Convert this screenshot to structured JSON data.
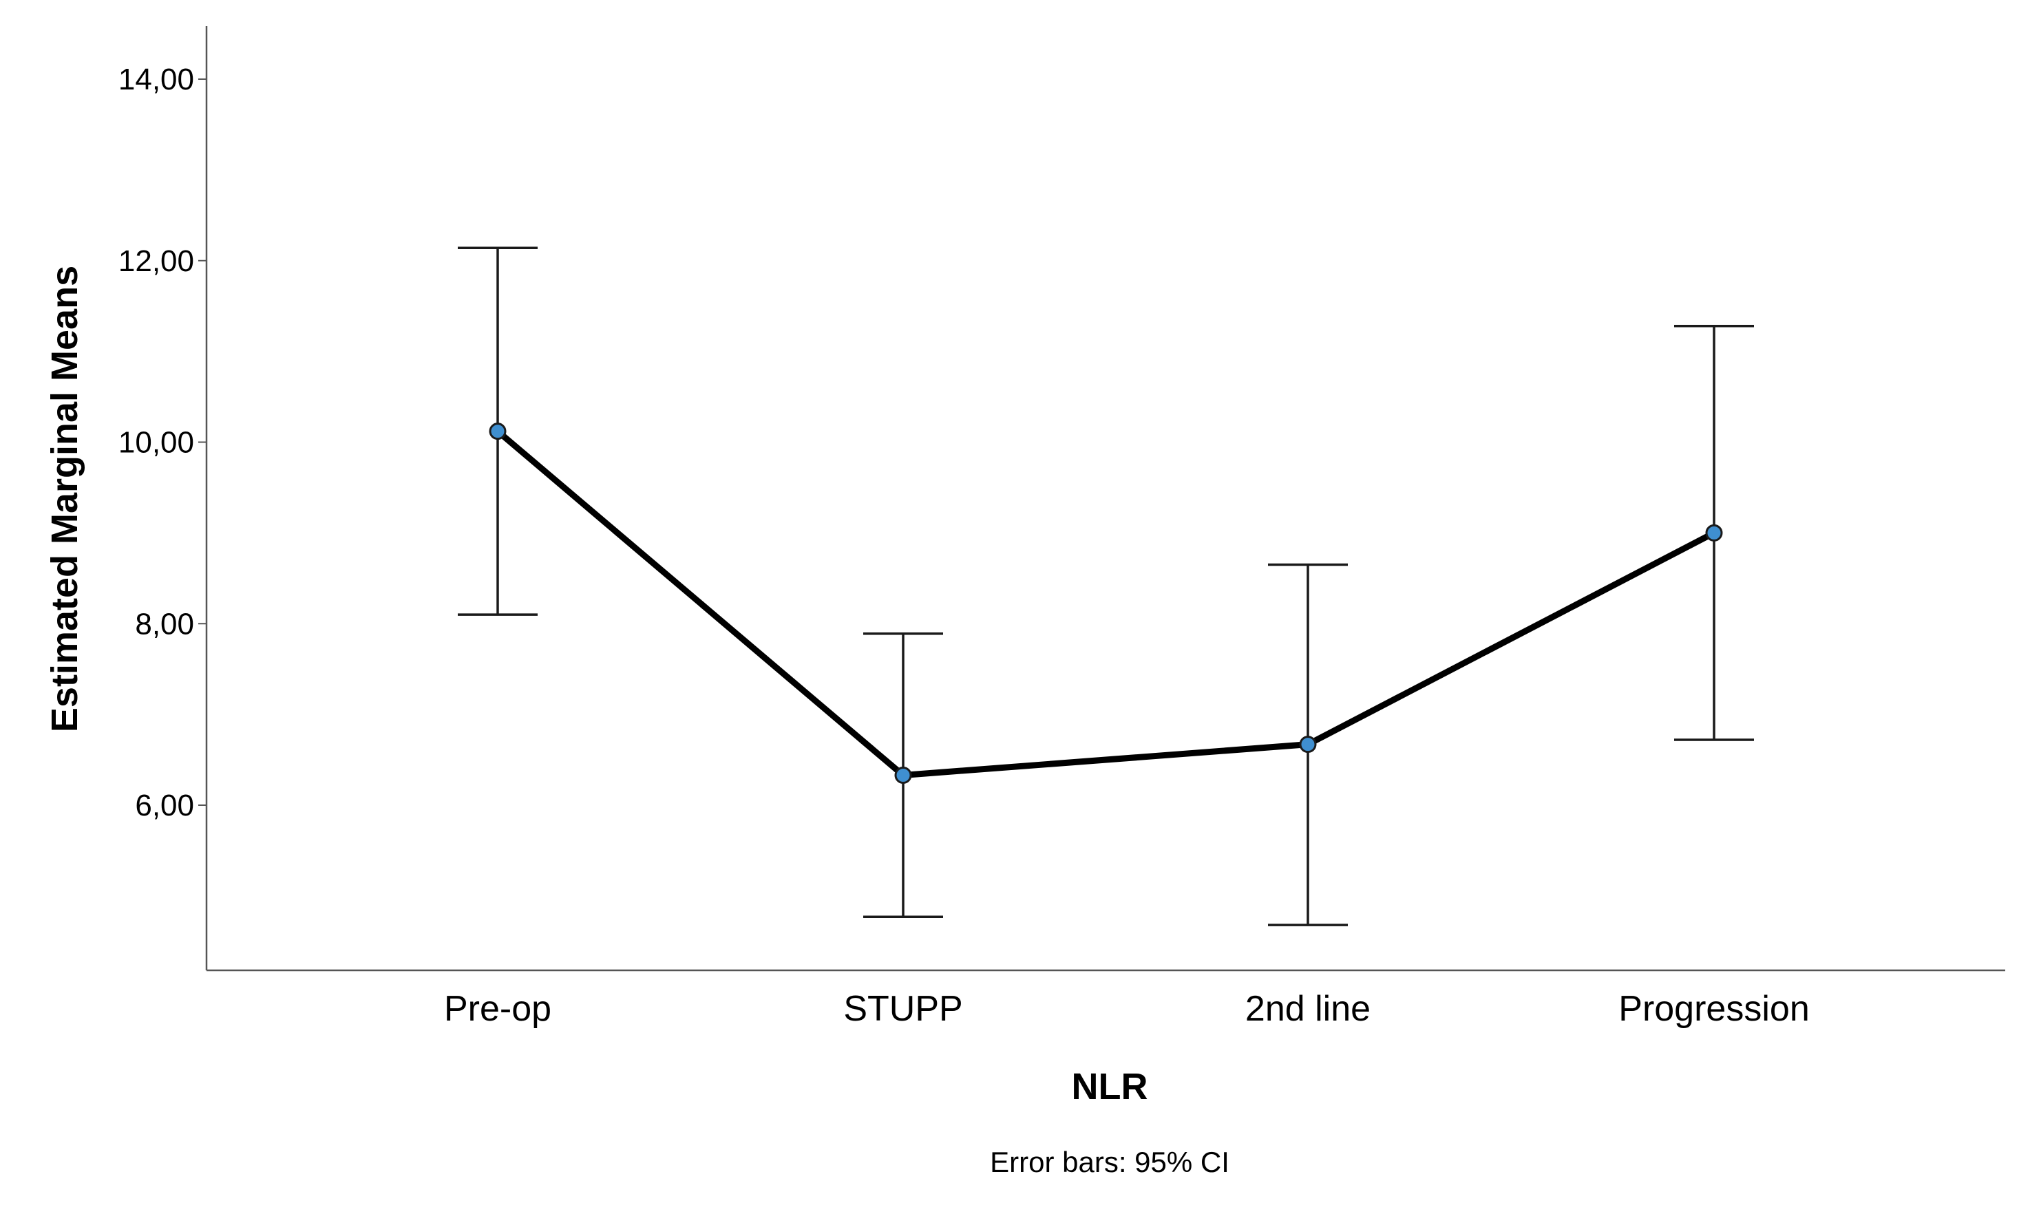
{
  "chart_data": {
    "type": "line",
    "title": "",
    "xlabel": "NLR",
    "ylabel": "Estimated Marginal Means",
    "footnote": "Error bars: 95% CI",
    "categories": [
      "Pre-op",
      "STUPP",
      "2nd line",
      "Progression"
    ],
    "series": [
      {
        "values": [
          10.12,
          6.33,
          6.67,
          9.0
        ],
        "ci_lower": [
          8.1,
          4.77,
          4.68,
          6.72
        ],
        "ci_upper": [
          12.14,
          7.89,
          8.65,
          11.28
        ]
      }
    ],
    "ylim": [
      4.0,
      14.5
    ],
    "yticks": [
      6.0,
      8.0,
      10.0,
      12.0,
      14.0
    ],
    "ytick_labels": [
      "6,00",
      "8,00",
      "10,00",
      "12,00",
      "14,00"
    ],
    "grid": false,
    "colors": {
      "line": "#000000",
      "marker_fill": "#3f8fd0",
      "marker_edge": "#1a1a1a",
      "error_bar": "#1a1a1a",
      "axis": "#555555"
    }
  }
}
